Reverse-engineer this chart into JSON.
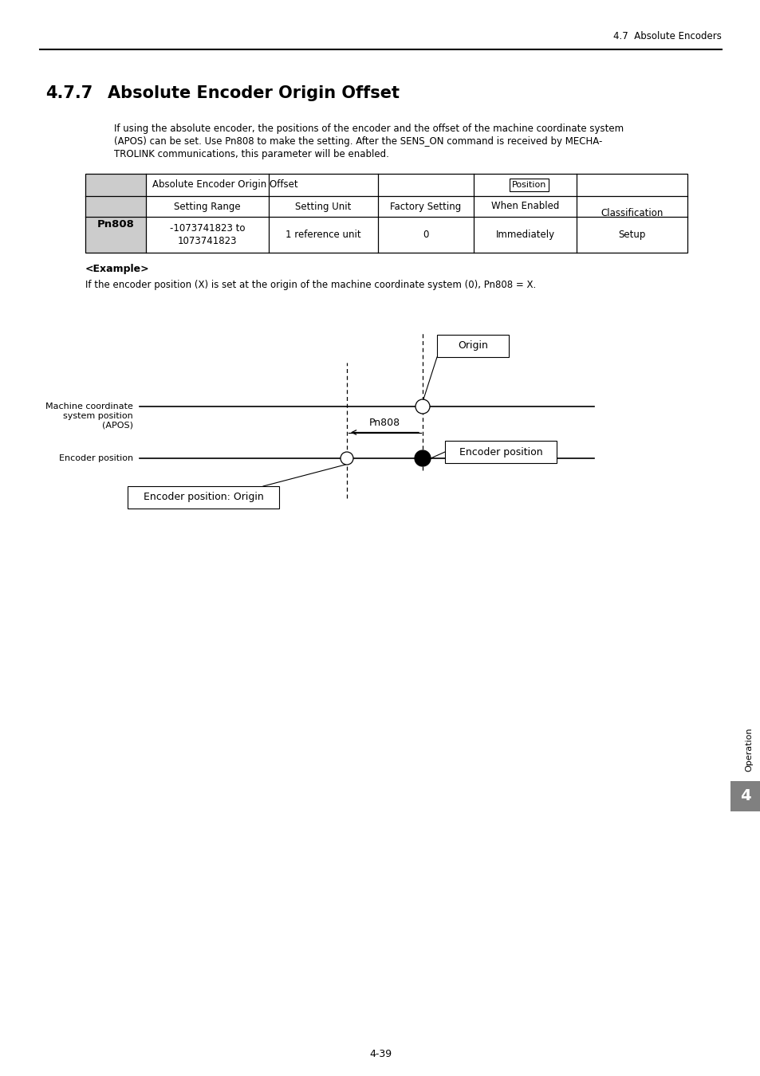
{
  "page_header_right": "4.7  Absolute Encoders",
  "section_number": "4.7.7",
  "section_title": "Absolute Encoder Origin Offset",
  "body_line1": "If using the absolute encoder, the positions of the encoder and the offset of the machine coordinate system",
  "body_line2": "(APOS) can be set. Use Pn808 to make the setting. After the SENS_ON command is received by MECHA-",
  "body_line3": "TROLINK communications, this parameter will be enabled.",
  "table_param": "Pn808",
  "table_header1": "Absolute Encoder Origin Offset",
  "table_position_label": "Position",
  "table_classification": "Classification",
  "table_col1": "Setting Range",
  "table_col2": "Setting Unit",
  "table_col3": "Factory Setting",
  "table_col4": "When Enabled",
  "table_val1": "-1073741823 to\n1073741823",
  "table_val2": "1 reference unit",
  "table_val3": "0",
  "table_val4": "Immediately",
  "table_val5": "Setup",
  "example_label": "<Example>",
  "example_text": "If the encoder position (X) is set at the origin of the machine coordinate system (0), Pn808 = X.",
  "side_label": "Operation",
  "side_number": "4",
  "page_number": "4-39",
  "diagram_origin_label": "Origin",
  "diagram_machine_label": "Machine coordinate\nsystem position\n(APOS)",
  "diagram_pn808_label": "Pn808",
  "diagram_encoder_pos_box": "Encoder position",
  "diagram_encoder_pos_line": "Encoder position",
  "diagram_encoder_origin_box": "Encoder position: Origin",
  "bg_color": "#ffffff",
  "text_color": "#000000",
  "table_header_bg": "#cccccc",
  "side_tab_color": "#808080"
}
